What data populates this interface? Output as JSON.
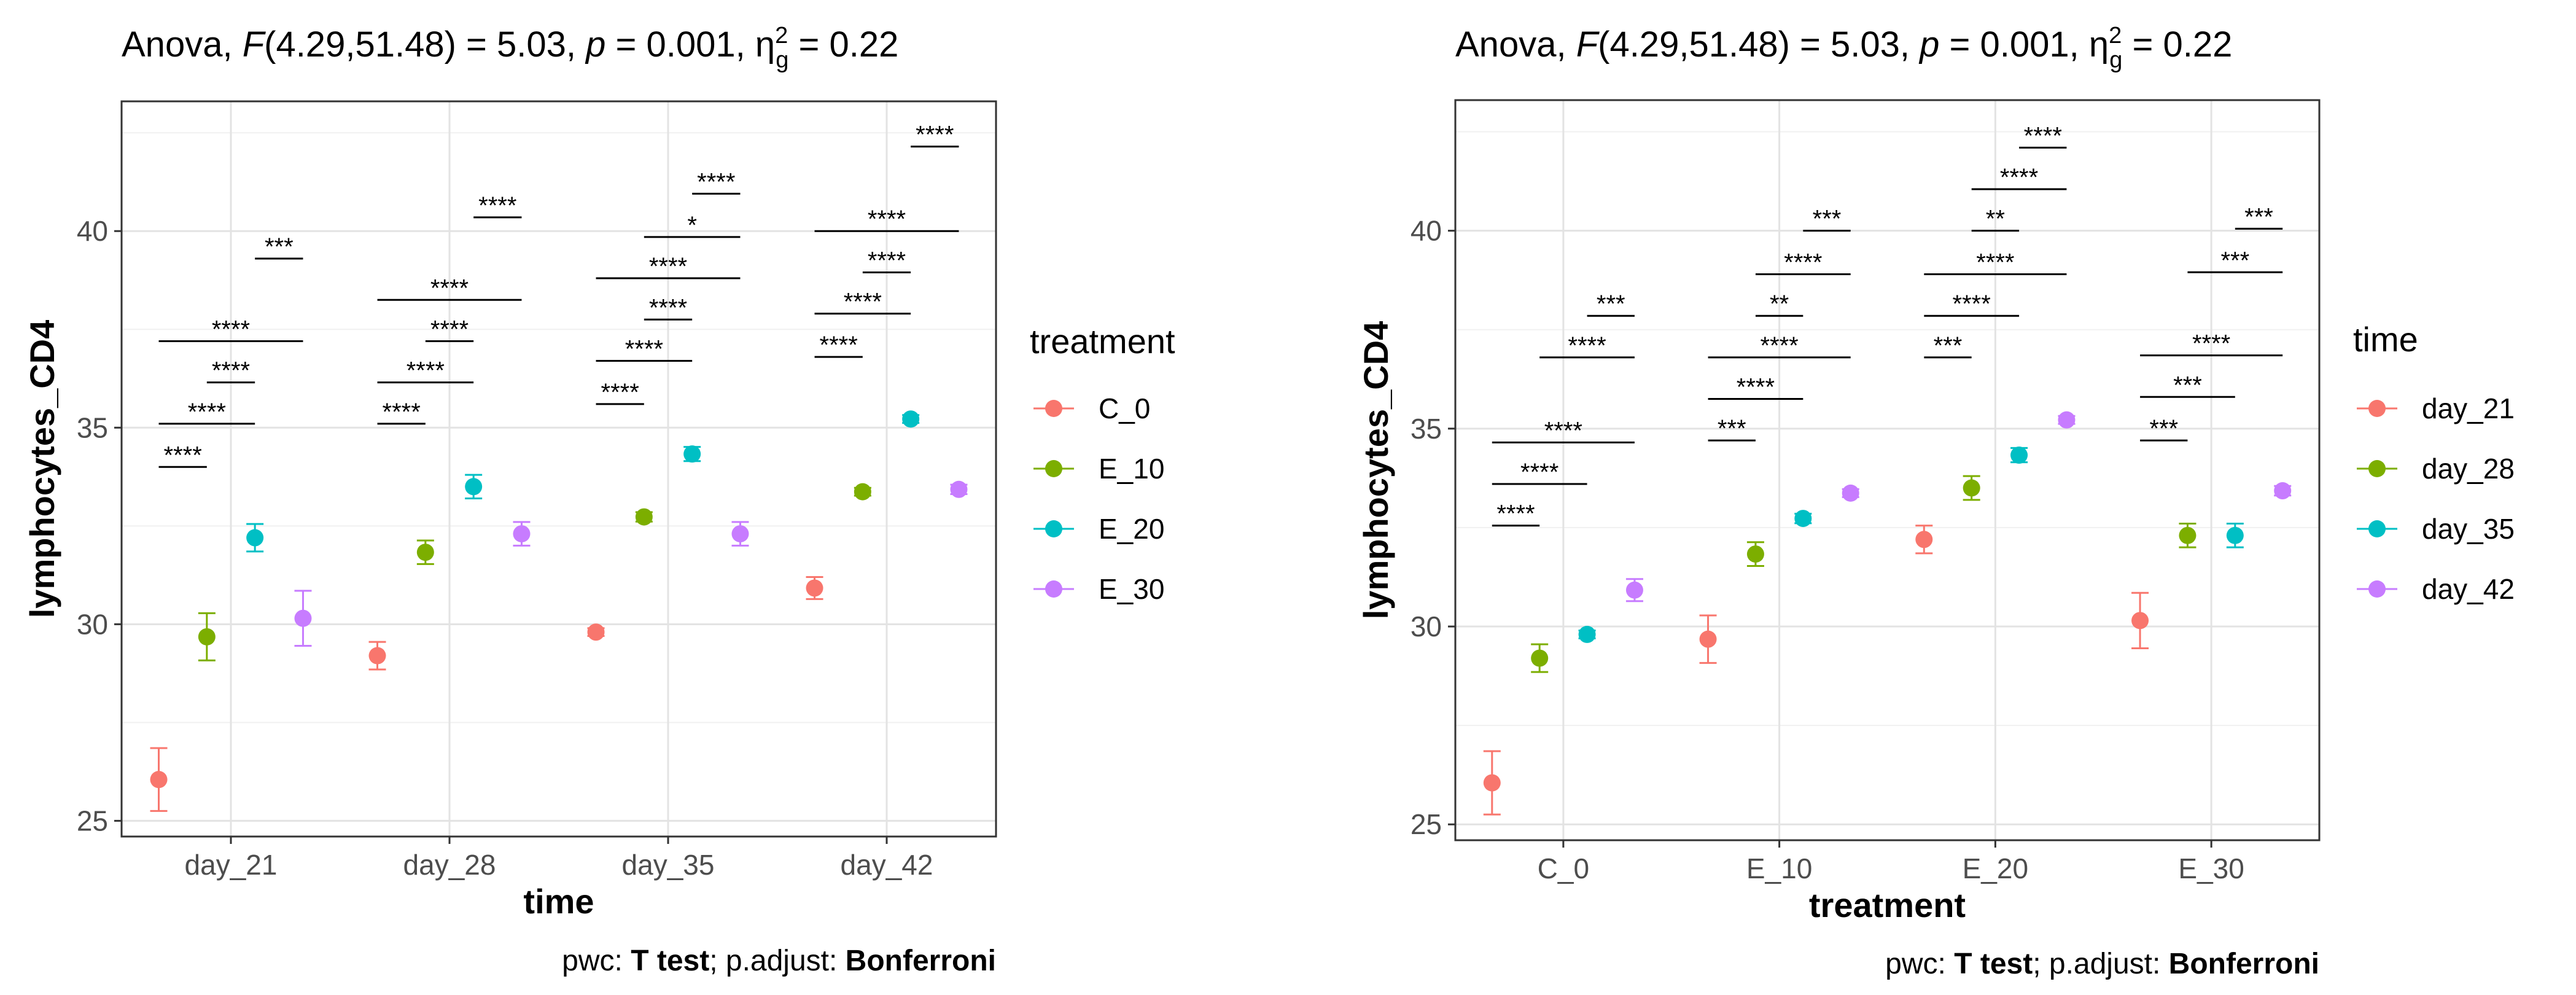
{
  "chart_data": [
    {
      "type": "scatter",
      "title_parts": {
        "prefix": "Anova, ",
        "stat": "F",
        "df": "(4.29,51.48) = 5.03, ",
        "p_label": "p",
        "p_value": " = 0.001, ",
        "eta": "η",
        "eta_sup": "2",
        "eta_sub": "g",
        "eta_value": " = 0.22"
      },
      "xlabel": "time",
      "ylabel": "lymphocytes_CD4",
      "ylim": [
        24.6,
        43.3
      ],
      "yticks": [
        25,
        30,
        35,
        40
      ],
      "grid": true,
      "legend_title": "treatment",
      "legend_position": "right",
      "categories": [
        "day_21",
        "day_28",
        "day_35",
        "day_42"
      ],
      "series": [
        {
          "name": "C_0",
          "color": "#F8766D",
          "values": [
            26.05,
            29.2,
            29.8,
            30.92
          ],
          "err": [
            0.8,
            0.35,
            0.1,
            0.28
          ]
        },
        {
          "name": "E_10",
          "color": "#7CAE00",
          "values": [
            29.68,
            31.83,
            32.73,
            33.37
          ],
          "err": [
            0.6,
            0.3,
            0.12,
            0.1
          ]
        },
        {
          "name": "E_20",
          "color": "#00BFC4",
          "values": [
            32.2,
            33.5,
            34.33,
            35.22
          ],
          "err": [
            0.35,
            0.3,
            0.18,
            0.1
          ]
        },
        {
          "name": "E_30",
          "color": "#C77CFF",
          "values": [
            30.15,
            32.3,
            32.3,
            33.43
          ],
          "err": [
            0.7,
            0.3,
            0.3,
            0.12
          ]
        }
      ],
      "brackets": [
        {
          "cat": 0,
          "from": 0,
          "to": 1,
          "y": 34.0,
          "label": "****"
        },
        {
          "cat": 0,
          "from": 0,
          "to": 2,
          "y": 35.1,
          "label": "****"
        },
        {
          "cat": 0,
          "from": 1,
          "to": 2,
          "y": 36.15,
          "label": "****"
        },
        {
          "cat": 0,
          "from": 0,
          "to": 3,
          "y": 37.2,
          "label": "****"
        },
        {
          "cat": 0,
          "from": 2,
          "to": 3,
          "y": 39.3,
          "label": "***"
        },
        {
          "cat": 1,
          "from": 0,
          "to": 1,
          "y": 35.1,
          "label": "****"
        },
        {
          "cat": 1,
          "from": 0,
          "to": 2,
          "y": 36.15,
          "label": "****"
        },
        {
          "cat": 1,
          "from": 1,
          "to": 2,
          "y": 37.2,
          "label": "****"
        },
        {
          "cat": 1,
          "from": 0,
          "to": 3,
          "y": 38.25,
          "label": "****"
        },
        {
          "cat": 1,
          "from": 2,
          "to": 3,
          "y": 40.35,
          "label": "****"
        },
        {
          "cat": 2,
          "from": 0,
          "to": 1,
          "y": 35.6,
          "label": "****"
        },
        {
          "cat": 2,
          "from": 0,
          "to": 2,
          "y": 36.7,
          "label": "****"
        },
        {
          "cat": 2,
          "from": 1,
          "to": 2,
          "y": 37.75,
          "label": "****"
        },
        {
          "cat": 2,
          "from": 0,
          "to": 3,
          "y": 38.8,
          "label": "****"
        },
        {
          "cat": 2,
          "from": 1,
          "to": 3,
          "y": 39.85,
          "label": "*"
        },
        {
          "cat": 2,
          "from": 2,
          "to": 3,
          "y": 40.95,
          "label": "****"
        },
        {
          "cat": 3,
          "from": 0,
          "to": 1,
          "y": 36.8,
          "label": "****"
        },
        {
          "cat": 3,
          "from": 0,
          "to": 2,
          "y": 37.9,
          "label": "****"
        },
        {
          "cat": 3,
          "from": 1,
          "to": 2,
          "y": 38.95,
          "label": "****"
        },
        {
          "cat": 3,
          "from": 0,
          "to": 3,
          "y": 40.0,
          "label": "****"
        },
        {
          "cat": 3,
          "from": 2,
          "to": 3,
          "y": 42.15,
          "label": "****"
        }
      ],
      "caption": {
        "a": "pwc: ",
        "b": "T test",
        "c": "; p.adjust: ",
        "d": "Bonferroni"
      }
    },
    {
      "type": "scatter",
      "title_parts": {
        "prefix": "Anova, ",
        "stat": "F",
        "df": "(4.29,51.48) = 5.03, ",
        "p_label": "p",
        "p_value": " = 0.001, ",
        "eta": "η",
        "eta_sup": "2",
        "eta_sub": "g",
        "eta_value": " = 0.22"
      },
      "xlabel": "treatment",
      "ylabel": "lymphocytes_CD4",
      "ylim": [
        24.6,
        43.3
      ],
      "yticks": [
        25,
        30,
        35,
        40
      ],
      "grid": true,
      "legend_title": "time",
      "legend_position": "right",
      "categories": [
        "C_0",
        "E_10",
        "E_20",
        "E_30"
      ],
      "series": [
        {
          "name": "day_21",
          "color": "#F8766D",
          "values": [
            26.05,
            29.68,
            32.2,
            30.15
          ],
          "err": [
            0.8,
            0.6,
            0.35,
            0.7
          ]
        },
        {
          "name": "day_28",
          "color": "#7CAE00",
          "values": [
            29.2,
            31.83,
            33.5,
            32.3
          ],
          "err": [
            0.35,
            0.3,
            0.3,
            0.3
          ]
        },
        {
          "name": "day_35",
          "color": "#00BFC4",
          "values": [
            29.8,
            32.73,
            34.33,
            32.3
          ],
          "err": [
            0.1,
            0.12,
            0.18,
            0.3
          ]
        },
        {
          "name": "day_42",
          "color": "#C77CFF",
          "values": [
            30.92,
            33.37,
            35.22,
            33.43
          ],
          "err": [
            0.28,
            0.1,
            0.1,
            0.12
          ]
        }
      ],
      "brackets": [
        {
          "cat": 0,
          "from": 0,
          "to": 1,
          "y": 32.55,
          "label": "****"
        },
        {
          "cat": 0,
          "from": 0,
          "to": 2,
          "y": 33.6,
          "label": "****"
        },
        {
          "cat": 0,
          "from": 0,
          "to": 3,
          "y": 34.65,
          "label": "****"
        },
        {
          "cat": 0,
          "from": 1,
          "to": 3,
          "y": 36.8,
          "label": "****"
        },
        {
          "cat": 0,
          "from": 2,
          "to": 3,
          "y": 37.85,
          "label": "***"
        },
        {
          "cat": 1,
          "from": 0,
          "to": 1,
          "y": 34.7,
          "label": "***"
        },
        {
          "cat": 1,
          "from": 0,
          "to": 2,
          "y": 35.75,
          "label": "****"
        },
        {
          "cat": 1,
          "from": 0,
          "to": 3,
          "y": 36.8,
          "label": "****"
        },
        {
          "cat": 1,
          "from": 1,
          "to": 2,
          "y": 37.85,
          "label": "**"
        },
        {
          "cat": 1,
          "from": 1,
          "to": 3,
          "y": 38.9,
          "label": "****"
        },
        {
          "cat": 1,
          "from": 2,
          "to": 3,
          "y": 40.0,
          "label": "***"
        },
        {
          "cat": 2,
          "from": 0,
          "to": 1,
          "y": 36.8,
          "label": "***"
        },
        {
          "cat": 2,
          "from": 0,
          "to": 2,
          "y": 37.85,
          "label": "****"
        },
        {
          "cat": 2,
          "from": 0,
          "to": 3,
          "y": 38.9,
          "label": "****"
        },
        {
          "cat": 2,
          "from": 1,
          "to": 2,
          "y": 40.0,
          "label": "**"
        },
        {
          "cat": 2,
          "from": 1,
          "to": 3,
          "y": 41.05,
          "label": "****"
        },
        {
          "cat": 2,
          "from": 2,
          "to": 3,
          "y": 42.1,
          "label": "****"
        },
        {
          "cat": 3,
          "from": 0,
          "to": 1,
          "y": 34.7,
          "label": "***"
        },
        {
          "cat": 3,
          "from": 0,
          "to": 2,
          "y": 35.8,
          "label": "***"
        },
        {
          "cat": 3,
          "from": 0,
          "to": 3,
          "y": 36.85,
          "label": "****"
        },
        {
          "cat": 3,
          "from": 1,
          "to": 3,
          "y": 38.95,
          "label": "***"
        },
        {
          "cat": 3,
          "from": 2,
          "to": 3,
          "y": 40.05,
          "label": "***"
        }
      ],
      "caption": {
        "a": "pwc: ",
        "b": "T test",
        "c": "; p.adjust: ",
        "d": "Bonferroni"
      }
    }
  ]
}
